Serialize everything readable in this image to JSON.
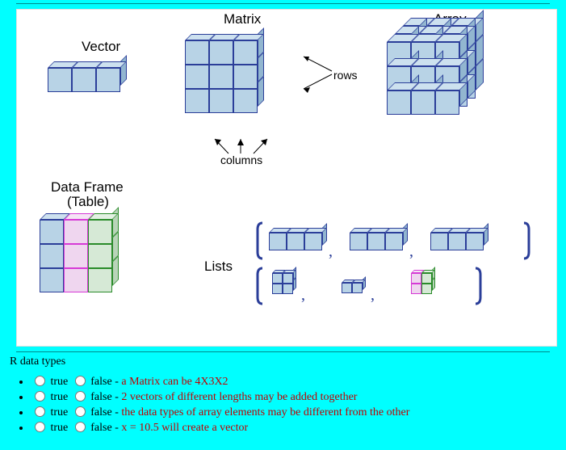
{
  "page_background": "#00ffff",
  "diagram_background": "#ffffff",
  "stroke_color": "#2b3e99",
  "fill_blue": "#b8d3e6",
  "fill_top": "#cde1ef",
  "fill_side": "#92b6d0",
  "fill_pink": "#efd6ef",
  "fill_green": "#d6e9d6",
  "labels": {
    "vector": "Vector",
    "matrix": "Matrix",
    "array": "Array",
    "rows": "rows",
    "columns": "columns",
    "dataframe1": "Data Frame",
    "dataframe2": "(Table)",
    "lists": "Lists"
  },
  "title_fontsize": 17,
  "ann_fontsize": 14,
  "diagram": {
    "vector": {
      "rows": 1,
      "cols": 3,
      "depth": 1,
      "cube": 30,
      "skew": 8,
      "colors": [
        "blue",
        "blue",
        "blue"
      ]
    },
    "matrix": {
      "rows": 3,
      "cols": 3,
      "depth": 1,
      "cube": 30,
      "skew": 8,
      "colors": [
        "blue",
        "blue",
        "blue"
      ]
    },
    "array": {
      "rows": 3,
      "cols": 3,
      "depth": 3,
      "cube": 30,
      "skew": 10
    },
    "dataframe": {
      "rows": 3,
      "cols": 3,
      "depth": 1,
      "cube": 30,
      "skew": 8,
      "colors": [
        "blue",
        "pink",
        "green"
      ]
    },
    "lists_top": [
      {
        "rows": 1,
        "cols": 3,
        "cube": 22,
        "skew": 6,
        "color": "blue"
      },
      {
        "rows": 1,
        "cols": 3,
        "cube": 22,
        "skew": 6,
        "color": "blue"
      },
      {
        "rows": 1,
        "cols": 3,
        "cube": 22,
        "skew": 6,
        "color": "blue"
      }
    ],
    "lists_bot": [
      {
        "rows": 2,
        "cols": 2,
        "cube": 13,
        "skew": 4,
        "color": "blue"
      },
      {
        "rows": 1,
        "cols": 2,
        "cube": 13,
        "skew": 4,
        "color": "blue"
      },
      {
        "rows": 2,
        "cols": 2,
        "cube": 13,
        "skew": 4,
        "colors": [
          "pink",
          "green"
        ]
      }
    ]
  },
  "questions": {
    "title": "R data types",
    "true_label": "true",
    "false_label": "false",
    "dash": " - ",
    "statement_color": "#c00000",
    "items": [
      "a Matrix can be 4X3X2",
      "2 vectors of different lengths may be added together",
      "the data types of array elements may be different from the other",
      "x = 10.5 will create a vector"
    ]
  }
}
